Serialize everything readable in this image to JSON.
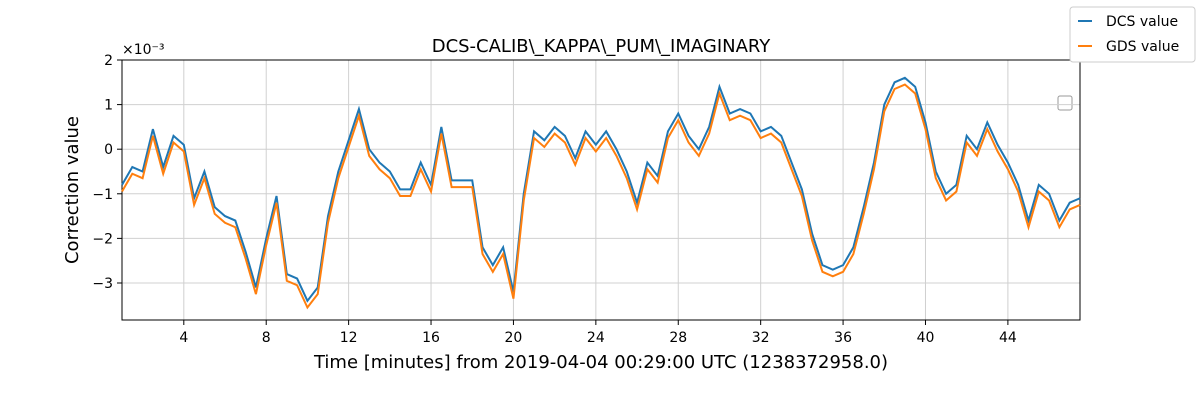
{
  "chart_data": {
    "type": "line",
    "title": "DCS-CALIB\\_KAPPA\\_PUM\\_IMAGINARY",
    "x_label": "Time [minutes] from 2019-04-04 00:29:00 UTC (1238372958.0)",
    "y_label": "Correction value",
    "y_offset_label": "×10⁻³",
    "x": [
      1,
      1.5,
      2,
      2.5,
      3,
      3.5,
      4,
      4.5,
      5,
      5.5,
      6,
      6.5,
      7,
      7.5,
      8,
      8.5,
      9,
      9.5,
      10,
      10.5,
      11,
      11.5,
      12,
      12.5,
      13,
      13.5,
      14,
      14.5,
      15,
      15.5,
      16,
      16.5,
      17,
      17.5,
      18,
      18.5,
      19,
      19.5,
      20,
      20.5,
      21,
      21.5,
      22,
      22.5,
      23,
      23.5,
      24,
      24.5,
      25,
      25.5,
      26,
      26.5,
      27,
      27.5,
      28,
      28.5,
      29,
      29.5,
      30,
      30.5,
      31,
      31.5,
      32,
      32.5,
      33,
      33.5,
      34,
      34.5,
      35,
      35.5,
      36,
      36.5,
      37,
      37.5,
      38,
      38.5,
      39,
      39.5,
      40,
      40.5,
      41,
      41.5,
      42,
      42.5,
      43,
      43.5,
      44,
      44.5,
      45,
      45.5,
      46,
      46.5,
      47,
      47.5
    ],
    "series": [
      {
        "name": "DCS value",
        "color": "#1f77b4",
        "values": [
          -0.8,
          -0.4,
          -0.5,
          0.45,
          -0.4,
          0.3,
          0.1,
          -1.1,
          -0.5,
          -1.3,
          -1.5,
          -1.6,
          -2.3,
          -3.1,
          -2.0,
          -1.05,
          -2.8,
          -2.9,
          -3.4,
          -3.1,
          -1.5,
          -0.5,
          0.2,
          0.9,
          0.0,
          -0.3,
          -0.5,
          -0.9,
          -0.9,
          -0.3,
          -0.8,
          0.5,
          -0.7,
          -0.7,
          -0.7,
          -2.2,
          -2.6,
          -2.2,
          -3.2,
          -1.0,
          0.4,
          0.2,
          0.5,
          0.3,
          -0.2,
          0.4,
          0.1,
          0.4,
          0.0,
          -0.5,
          -1.2,
          -0.3,
          -0.6,
          0.4,
          0.8,
          0.3,
          0.0,
          0.5,
          1.4,
          0.8,
          0.9,
          0.8,
          0.4,
          0.5,
          0.3,
          -0.3,
          -0.9,
          -1.9,
          -2.6,
          -2.7,
          -2.6,
          -2.2,
          -1.3,
          -0.3,
          1.0,
          1.5,
          1.6,
          1.4,
          0.6,
          -0.5,
          -1.0,
          -0.8,
          0.3,
          0.0,
          0.6,
          0.1,
          -0.3,
          -0.8,
          -1.6,
          -0.8,
          -1.0,
          -1.6,
          -1.2,
          -1.1
        ]
      },
      {
        "name": "GDS value",
        "color": "#ff7f0e",
        "values": [
          -0.95,
          -0.55,
          -0.65,
          0.3,
          -0.55,
          0.15,
          -0.05,
          -1.25,
          -0.65,
          -1.45,
          -1.65,
          -1.75,
          -2.45,
          -3.25,
          -2.15,
          -1.2,
          -2.95,
          -3.05,
          -3.55,
          -3.25,
          -1.65,
          -0.65,
          0.05,
          0.75,
          -0.15,
          -0.45,
          -0.65,
          -1.05,
          -1.05,
          -0.45,
          -0.95,
          0.35,
          -0.85,
          -0.85,
          -0.85,
          -2.35,
          -2.75,
          -2.35,
          -3.35,
          -1.15,
          0.25,
          0.05,
          0.35,
          0.15,
          -0.35,
          0.25,
          -0.05,
          0.25,
          -0.15,
          -0.65,
          -1.35,
          -0.45,
          -0.75,
          0.25,
          0.65,
          0.15,
          -0.15,
          0.35,
          1.25,
          0.65,
          0.75,
          0.65,
          0.25,
          0.35,
          0.15,
          -0.45,
          -1.05,
          -2.05,
          -2.75,
          -2.85,
          -2.75,
          -2.35,
          -1.45,
          -0.45,
          0.85,
          1.35,
          1.45,
          1.25,
          0.45,
          -0.65,
          -1.15,
          -0.95,
          0.15,
          -0.15,
          0.45,
          -0.05,
          -0.45,
          -0.95,
          -1.75,
          -0.95,
          -1.15,
          -1.75,
          -1.35,
          -1.25
        ]
      }
    ],
    "xlim": [
      1,
      47.5
    ],
    "xticks": [
      4,
      8,
      12,
      16,
      20,
      24,
      28,
      32,
      36,
      40,
      44
    ],
    "ylim": [
      -3.83,
      2
    ],
    "yticks": [
      2,
      1,
      0,
      {
        "value": -1,
        "label": "−1"
      },
      {
        "value": -2,
        "label": "−2"
      },
      {
        "value": -3,
        "label": "−3"
      }
    ],
    "grid": true,
    "legend": "upper right outside"
  }
}
